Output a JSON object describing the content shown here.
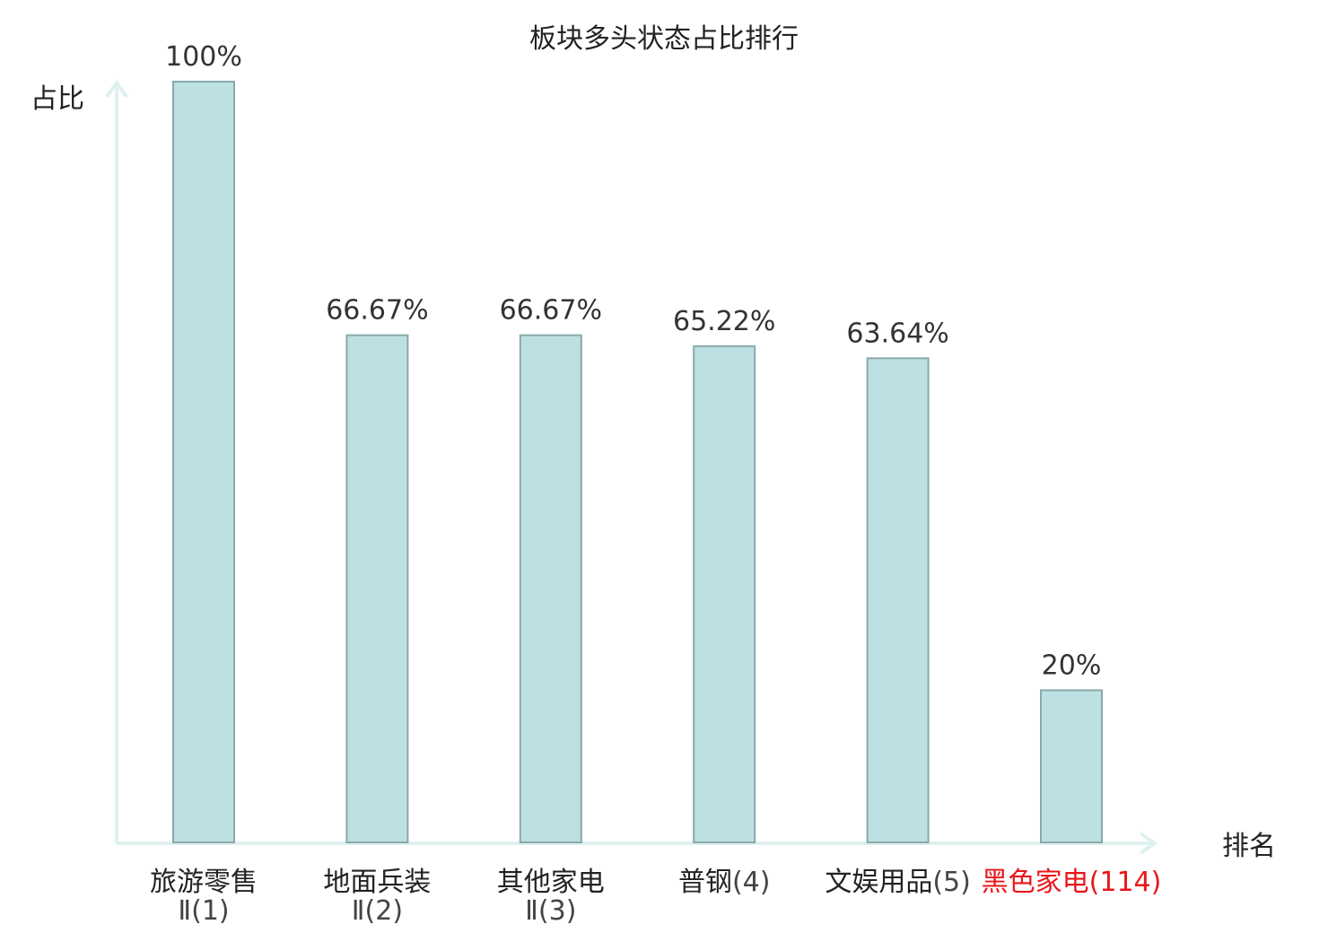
{
  "chart_data": {
    "type": "bar",
    "title": "板块多头状态占比排行",
    "ylabel": "占比",
    "xlabel": "排名",
    "ylim": [
      0,
      100
    ],
    "grid": false,
    "categories": [
      {
        "name": "旅游零售",
        "suffix": "Ⅱ",
        "rank": "(1)",
        "highlight": false
      },
      {
        "name": "地面兵装",
        "suffix": "Ⅱ",
        "rank": "(2)",
        "highlight": false
      },
      {
        "name": "其他家电",
        "suffix": "Ⅱ",
        "rank": "(3)",
        "highlight": false
      },
      {
        "name": "普钢",
        "suffix": "",
        "rank": "(4)",
        "highlight": false
      },
      {
        "name": "文娱用品",
        "suffix": "",
        "rank": "(5)",
        "highlight": false
      },
      {
        "name": "黑色家电",
        "suffix": "",
        "rank": "(114)",
        "highlight": true
      }
    ],
    "values": [
      100,
      66.67,
      66.67,
      65.22,
      63.64,
      20
    ],
    "value_labels": [
      "100%",
      "66.67%",
      "66.67%",
      "65.22%",
      "63.64%",
      "20%"
    ]
  },
  "colors": {
    "bar_fill": "#bde0e2",
    "bar_stroke": "#8aa9ab",
    "axis": "#dff1ef",
    "text": "#222222",
    "value_text": "#333333",
    "highlight_text": "#e8171b"
  }
}
